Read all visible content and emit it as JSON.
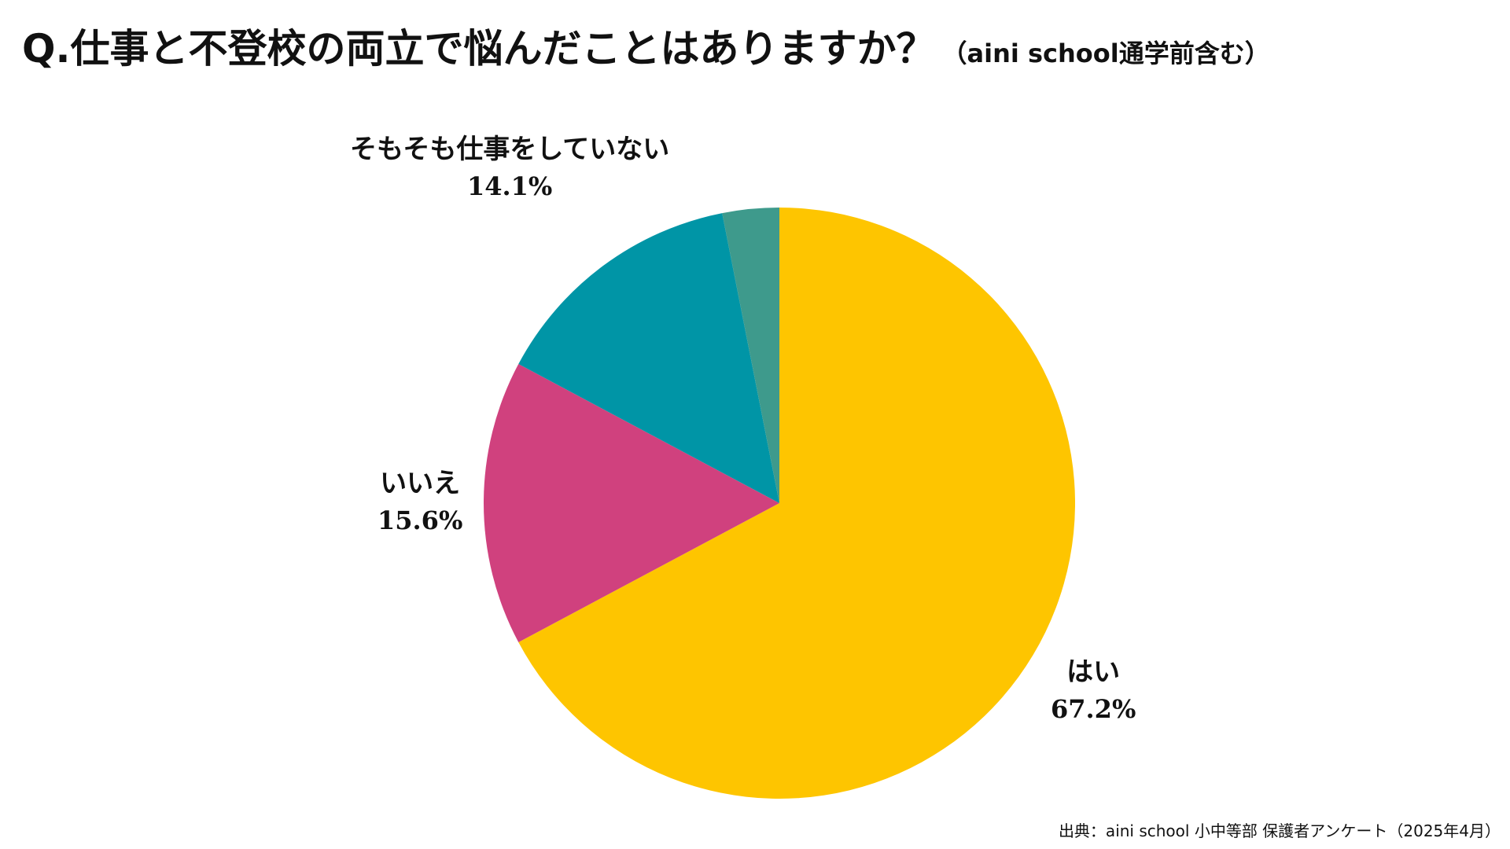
{
  "title": {
    "main": "Q.仕事と不登校の両立で悩んだことはありますか？",
    "sub": "（aini school通学前含む）"
  },
  "source": "出典：aini school 小中等部 保護者アンケート（2025年4月）",
  "chart_data": {
    "type": "pie",
    "title": "Q.仕事と不登校の両立で悩んだことはありますか？（aini school通学前含む）",
    "categories": [
      "はい",
      "いいえ",
      "そもそも仕事をしていない",
      ""
    ],
    "values": [
      67.2,
      15.6,
      14.1,
      3.1
    ],
    "value_labels": [
      "67.2%",
      "15.6%",
      "14.1%",
      ""
    ],
    "colors": [
      "#FEC500",
      "#D0417E",
      "#0095A6",
      "#3E9A8C"
    ],
    "start": "12 o'clock",
    "direction": "clockwise"
  }
}
